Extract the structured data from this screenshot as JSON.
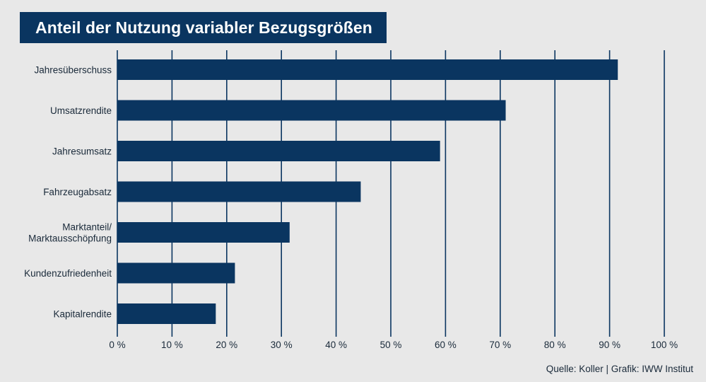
{
  "title": "Anteil der Nutzung variabler Bezugsgrößen",
  "source": "Quelle: Koller | Grafik: IWW Institut",
  "colors": {
    "bar": "#0a3560",
    "grid": "#0a3560",
    "background": "#e8e8e8",
    "text": "#1a2a3a"
  },
  "chart_data": {
    "type": "bar",
    "orientation": "horizontal",
    "categories": [
      "Jahresüberschuss",
      "Umsatzrendite",
      "Jahresumsatz",
      "Fahrzeugabsatz",
      "Marktanteil/ Marktausschöpfung",
      "Kundenzufriedenheit",
      "Kapitalrendite"
    ],
    "values": [
      91.5,
      71,
      59,
      44.5,
      31.5,
      21.5,
      18
    ],
    "xlim": [
      0,
      100
    ],
    "xticks": [
      0,
      10,
      20,
      30,
      40,
      50,
      60,
      70,
      80,
      90,
      100
    ],
    "xtick_labels": [
      "0 %",
      "10 %",
      "20 %",
      "30 %",
      "40 %",
      "50 %",
      "60 %",
      "70 %",
      "80 %",
      "90 %",
      "100 %"
    ],
    "grid": "vertical",
    "xlabel": "",
    "ylabel": ""
  }
}
